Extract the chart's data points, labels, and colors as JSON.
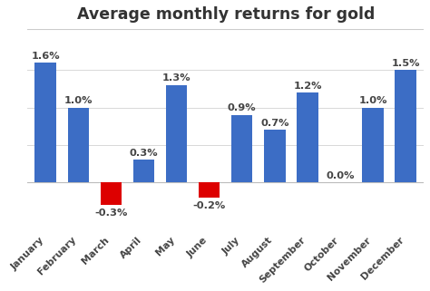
{
  "title": "Average monthly returns for gold",
  "months": [
    "January",
    "February",
    "March",
    "April",
    "May",
    "June",
    "July",
    "August",
    "September",
    "October",
    "November",
    "December"
  ],
  "values": [
    1.6,
    1.0,
    -0.3,
    0.3,
    1.3,
    -0.2,
    0.9,
    0.7,
    1.2,
    0.0,
    1.0,
    1.5
  ],
  "labels": [
    "1.6%",
    "1.0%",
    "-0.3%",
    "0.3%",
    "1.3%",
    "-0.2%",
    "0.9%",
    "0.7%",
    "1.2%",
    "0.0%",
    "1.0%",
    "1.5%"
  ],
  "bar_color_pos": "#3c6dc5",
  "bar_color_neg": "#dd0000",
  "background_color": "#ffffff",
  "title_fontsize": 12.5,
  "label_fontsize": 8.2,
  "tick_fontsize": 7.8,
  "ylim": [
    -0.65,
    2.05
  ],
  "grid_color": "#d8d8d8",
  "text_color": "#444444",
  "top_line_color": "#cccccc",
  "zero_line_color": "#bbbbbb"
}
